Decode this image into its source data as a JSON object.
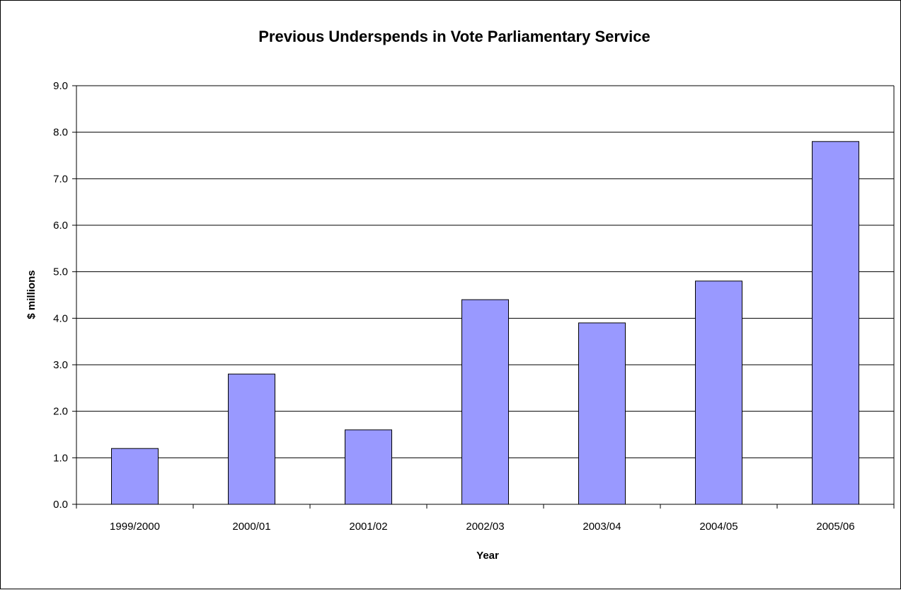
{
  "chart_data": {
    "type": "bar",
    "title": "Previous Underspends in Vote Parliamentary Service",
    "xlabel": "Year",
    "ylabel": "$ millions",
    "categories": [
      "1999/2000",
      "2000/01",
      "2001/02",
      "2002/03",
      "2003/04",
      "2004/05",
      "2005/06"
    ],
    "values": [
      1.2,
      2.8,
      1.6,
      4.4,
      3.9,
      4.8,
      7.8
    ],
    "ylim": [
      0,
      9
    ],
    "yticks": [
      "0.0",
      "1.0",
      "2.0",
      "3.0",
      "4.0",
      "5.0",
      "6.0",
      "7.0",
      "8.0",
      "9.0"
    ],
    "grid": true,
    "legend": "none",
    "bar_color": "#9999ff",
    "bar_border_color": "#000000"
  }
}
